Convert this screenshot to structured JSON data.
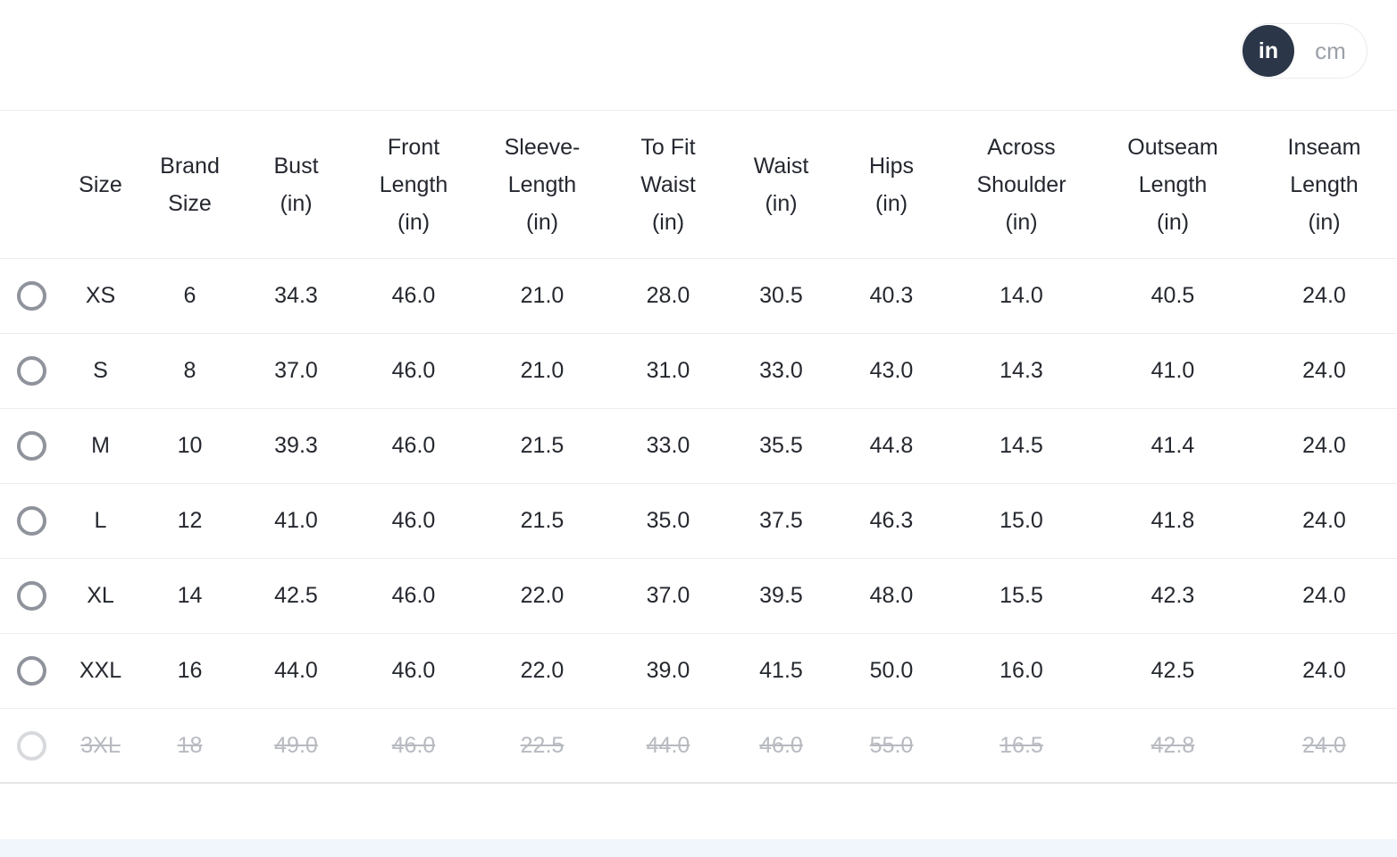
{
  "unit_toggle": {
    "selected": "in",
    "options": [
      {
        "label": "in"
      },
      {
        "label": "cm"
      }
    ]
  },
  "size_chart": {
    "columns": [
      {
        "label": "Size",
        "lines": [
          "Size"
        ]
      },
      {
        "label": "Brand Size",
        "lines": [
          "Brand",
          "Size"
        ]
      },
      {
        "label": "Bust (in)",
        "lines": [
          "Bust",
          "(in)"
        ]
      },
      {
        "label": "Front Length (in)",
        "lines": [
          "Front",
          "Length",
          "(in)"
        ]
      },
      {
        "label": "Sleeve-Length (in)",
        "lines": [
          "Sleeve-",
          "Length",
          "(in)"
        ]
      },
      {
        "label": "To Fit Waist (in)",
        "lines": [
          "To Fit",
          "Waist",
          "(in)"
        ]
      },
      {
        "label": "Waist (in)",
        "lines": [
          "Waist",
          "(in)"
        ]
      },
      {
        "label": "Hips (in)",
        "lines": [
          "Hips",
          "(in)"
        ]
      },
      {
        "label": "Across Shoulder (in)",
        "lines": [
          "Across",
          "Shoulder",
          "(in)"
        ]
      },
      {
        "label": "Outseam Length (in)",
        "lines": [
          "Outseam",
          "Length",
          "(in)"
        ]
      },
      {
        "label": "Inseam Length (in)",
        "lines": [
          "Inseam",
          "Length",
          "(in)"
        ]
      }
    ],
    "rows": [
      {
        "size": "XS",
        "values": [
          "6",
          "34.3",
          "46.0",
          "21.0",
          "28.0",
          "30.5",
          "40.3",
          "14.0",
          "40.5",
          "24.0"
        ],
        "disabled": false,
        "selected": false
      },
      {
        "size": "S",
        "values": [
          "8",
          "37.0",
          "46.0",
          "21.0",
          "31.0",
          "33.0",
          "43.0",
          "14.3",
          "41.0",
          "24.0"
        ],
        "disabled": false,
        "selected": false
      },
      {
        "size": "M",
        "values": [
          "10",
          "39.3",
          "46.0",
          "21.5",
          "33.0",
          "35.5",
          "44.8",
          "14.5",
          "41.4",
          "24.0"
        ],
        "disabled": false,
        "selected": false
      },
      {
        "size": "L",
        "values": [
          "12",
          "41.0",
          "46.0",
          "21.5",
          "35.0",
          "37.5",
          "46.3",
          "15.0",
          "41.8",
          "24.0"
        ],
        "disabled": false,
        "selected": false
      },
      {
        "size": "XL",
        "values": [
          "14",
          "42.5",
          "46.0",
          "22.0",
          "37.0",
          "39.5",
          "48.0",
          "15.5",
          "42.3",
          "24.0"
        ],
        "disabled": false,
        "selected": false
      },
      {
        "size": "XXL",
        "values": [
          "16",
          "44.0",
          "46.0",
          "22.0",
          "39.0",
          "41.5",
          "50.0",
          "16.0",
          "42.5",
          "24.0"
        ],
        "disabled": false,
        "selected": false
      },
      {
        "size": "3XL",
        "values": [
          "18",
          "49.0",
          "46.0",
          "22.5",
          "44.0",
          "46.0",
          "55.0",
          "16.5",
          "42.8",
          "24.0"
        ],
        "disabled": true,
        "selected": false
      }
    ]
  },
  "colors": {
    "accent_dark": "#2b3648",
    "text": "#25282f",
    "muted_text": "#9ba0a8",
    "disabled_text": "#b7bac0",
    "divider": "#ededef",
    "radio_border": "#8f939c",
    "radio_border_disabled": "#d7d9dc"
  }
}
